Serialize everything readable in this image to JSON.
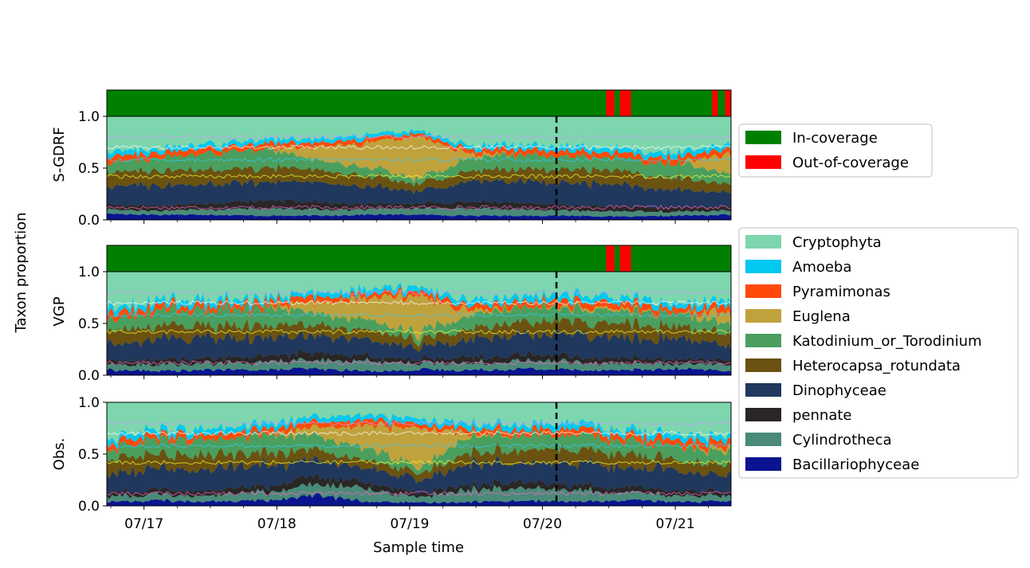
{
  "figure": {
    "ylabel": "Taxon proportion",
    "xlabel": "Sample time"
  },
  "coverage_legend": [
    {
      "label": "In-coverage",
      "color": "#008000"
    },
    {
      "label": "Out-of-coverage",
      "color": "#ff0000"
    }
  ],
  "taxa_legend": [
    {
      "label": "Cryptophyta",
      "color": "#7dd6ad"
    },
    {
      "label": "Amoeba",
      "color": "#00c8f0"
    },
    {
      "label": "Pyramimonas",
      "color": "#ff4a0a"
    },
    {
      "label": "Euglena",
      "color": "#c0a23c"
    },
    {
      "label": "Katodinium_or_Torodinium",
      "color": "#4a9f5f"
    },
    {
      "label": "Heterocapsa_rotundata",
      "color": "#6b5210"
    },
    {
      "label": "Dinophyceae",
      "color": "#20375e"
    },
    {
      "label": "pennate",
      "color": "#2a2626"
    },
    {
      "label": "Cylindrotheca",
      "color": "#4a8a78"
    },
    {
      "label": "Bacillariophyceae",
      "color": "#0a1490"
    }
  ],
  "chart_data": [
    {
      "type": "area",
      "panel": "S-GDRF",
      "ylabel": "S-GDRF",
      "y_ticks": [
        "0.0",
        "0.5",
        "1.0"
      ],
      "ylim": [
        0,
        1.25
      ],
      "x_ticks": [
        "07/17",
        "07/18",
        "07/19",
        "07/20",
        "07/21"
      ],
      "x_range_days": [
        16.72,
        21.42
      ],
      "divider_x": "07/20 02:30",
      "coverage_bar": {
        "in": "#008000",
        "out": "#ff0000",
        "out_intervals": [
          [
            "07/20 11:30",
            "07/20 13:00"
          ],
          [
            "07/20 14:00",
            "07/20 16:00"
          ],
          [
            "07/21 06:40",
            "07/21 07:40"
          ],
          [
            "07/21 09:00",
            "07/21 10:00"
          ]
        ]
      },
      "series": [
        {
          "name": "Bacillariophyceae",
          "values": [
            0.06,
            0.05,
            0.05,
            0.04,
            0.04,
            0.05,
            0.05,
            0.04,
            0.04,
            0.04,
            0.03,
            0.04,
            0.05
          ]
        },
        {
          "name": "Cylindrotheca",
          "values": [
            0.04,
            0.04,
            0.05,
            0.07,
            0.06,
            0.05,
            0.06,
            0.07,
            0.06,
            0.05,
            0.05,
            0.04,
            0.04
          ]
        },
        {
          "name": "pennate",
          "values": [
            0.05,
            0.05,
            0.06,
            0.08,
            0.07,
            0.05,
            0.05,
            0.06,
            0.07,
            0.05,
            0.05,
            0.04,
            0.04
          ]
        },
        {
          "name": "Dinophyceae",
          "values": [
            0.17,
            0.2,
            0.18,
            0.18,
            0.19,
            0.17,
            0.12,
            0.2,
            0.2,
            0.22,
            0.2,
            0.17,
            0.12
          ]
        },
        {
          "name": "Heterocapsa_rotundata",
          "values": [
            0.14,
            0.14,
            0.14,
            0.14,
            0.12,
            0.1,
            0.07,
            0.1,
            0.12,
            0.14,
            0.13,
            0.12,
            0.08
          ]
        },
        {
          "name": "Katodinium_or_Torodinium",
          "values": [
            0.08,
            0.12,
            0.16,
            0.18,
            0.1,
            0.08,
            0.05,
            0.12,
            0.14,
            0.12,
            0.12,
            0.14,
            0.1
          ]
        },
        {
          "name": "Euglena",
          "values": [
            0.0,
            0.0,
            0.0,
            0.0,
            0.12,
            0.24,
            0.4,
            0.04,
            0.0,
            0.0,
            0.0,
            0.0,
            0.2
          ]
        },
        {
          "name": "Pyramimonas",
          "values": [
            0.06,
            0.05,
            0.05,
            0.05,
            0.04,
            0.04,
            0.03,
            0.04,
            0.05,
            0.05,
            0.05,
            0.06,
            0.05
          ]
        },
        {
          "name": "Amoeba",
          "values": [
            0.05,
            0.04,
            0.04,
            0.04,
            0.04,
            0.04,
            0.03,
            0.04,
            0.04,
            0.05,
            0.04,
            0.05,
            0.04
          ]
        },
        {
          "name": "Cryptophyta",
          "values": [
            0.35,
            0.31,
            0.27,
            0.22,
            0.22,
            0.18,
            0.14,
            0.29,
            0.28,
            0.28,
            0.33,
            0.34,
            0.28
          ]
        }
      ]
    },
    {
      "type": "area",
      "panel": "VGP",
      "ylabel": "VGP",
      "y_ticks": [
        "0.0",
        "0.5",
        "1.0"
      ],
      "ylim": [
        0,
        1.25
      ],
      "x_ticks": [
        "07/17",
        "07/18",
        "07/19",
        "07/20",
        "07/21"
      ],
      "x_range_days": [
        16.72,
        21.42
      ],
      "divider_x": "07/20 02:30",
      "coverage_bar": {
        "in": "#008000",
        "out": "#ff0000",
        "out_intervals": [
          [
            "07/20 11:30",
            "07/20 13:00"
          ],
          [
            "07/20 14:00",
            "07/20 16:00"
          ]
        ]
      },
      "series": [
        {
          "name": "Bacillariophyceae",
          "values": [
            0.05,
            0.04,
            0.05,
            0.05,
            0.06,
            0.04,
            0.05,
            0.05,
            0.06,
            0.05,
            0.05,
            0.06,
            0.04
          ]
        },
        {
          "name": "Cylindrotheca",
          "values": [
            0.05,
            0.06,
            0.06,
            0.07,
            0.08,
            0.1,
            0.06,
            0.07,
            0.08,
            0.08,
            0.06,
            0.05,
            0.06
          ]
        },
        {
          "name": "pennate",
          "values": [
            0.04,
            0.05,
            0.05,
            0.06,
            0.07,
            0.05,
            0.04,
            0.06,
            0.06,
            0.05,
            0.05,
            0.05,
            0.04
          ]
        },
        {
          "name": "Dinophyceae",
          "values": [
            0.16,
            0.2,
            0.2,
            0.18,
            0.16,
            0.16,
            0.12,
            0.18,
            0.2,
            0.22,
            0.18,
            0.2,
            0.14
          ]
        },
        {
          "name": "Heterocapsa_rotundata",
          "values": [
            0.14,
            0.13,
            0.12,
            0.12,
            0.1,
            0.1,
            0.07,
            0.1,
            0.12,
            0.12,
            0.14,
            0.12,
            0.1
          ]
        },
        {
          "name": "Katodinium_or_Torodinium",
          "values": [
            0.1,
            0.14,
            0.15,
            0.18,
            0.12,
            0.1,
            0.06,
            0.14,
            0.14,
            0.12,
            0.12,
            0.12,
            0.1
          ]
        },
        {
          "name": "Euglena",
          "values": [
            0.0,
            0.0,
            0.0,
            0.0,
            0.1,
            0.2,
            0.36,
            0.04,
            0.0,
            0.02,
            0.02,
            0.0,
            0.12
          ]
        },
        {
          "name": "Pyramimonas",
          "values": [
            0.06,
            0.05,
            0.05,
            0.05,
            0.05,
            0.04,
            0.04,
            0.05,
            0.05,
            0.06,
            0.06,
            0.05,
            0.06
          ]
        },
        {
          "name": "Amoeba",
          "values": [
            0.05,
            0.05,
            0.05,
            0.04,
            0.04,
            0.05,
            0.04,
            0.05,
            0.05,
            0.06,
            0.05,
            0.05,
            0.05
          ]
        },
        {
          "name": "Cryptophyta",
          "values": [
            0.35,
            0.28,
            0.27,
            0.25,
            0.22,
            0.16,
            0.16,
            0.26,
            0.24,
            0.22,
            0.27,
            0.3,
            0.29
          ]
        }
      ]
    },
    {
      "type": "area",
      "panel": "Obs.",
      "ylabel": "Obs.",
      "y_ticks": [
        "0.0",
        "0.5",
        "1.0"
      ],
      "ylim": [
        0,
        1.0
      ],
      "x_ticks": [
        "07/17",
        "07/18",
        "07/19",
        "07/20",
        "07/21"
      ],
      "x_range_days": [
        16.72,
        21.42
      ],
      "divider_x": "07/20 02:30",
      "series": [
        {
          "name": "Bacillariophyceae",
          "values": [
            0.04,
            0.05,
            0.04,
            0.05,
            0.1,
            0.04,
            0.03,
            0.04,
            0.05,
            0.04,
            0.05,
            0.04,
            0.04
          ]
        },
        {
          "name": "Cylindrotheca",
          "values": [
            0.05,
            0.06,
            0.06,
            0.08,
            0.1,
            0.12,
            0.05,
            0.12,
            0.14,
            0.1,
            0.08,
            0.06,
            0.05
          ]
        },
        {
          "name": "pennate",
          "values": [
            0.04,
            0.05,
            0.05,
            0.06,
            0.08,
            0.06,
            0.04,
            0.05,
            0.06,
            0.05,
            0.05,
            0.05,
            0.04
          ]
        },
        {
          "name": "Dinophyceae",
          "values": [
            0.18,
            0.2,
            0.2,
            0.2,
            0.16,
            0.14,
            0.12,
            0.2,
            0.18,
            0.2,
            0.2,
            0.2,
            0.16
          ]
        },
        {
          "name": "Heterocapsa_rotundata",
          "values": [
            0.14,
            0.14,
            0.13,
            0.12,
            0.1,
            0.08,
            0.07,
            0.1,
            0.12,
            0.14,
            0.13,
            0.12,
            0.1
          ]
        },
        {
          "name": "Katodinium_or_Torodinium",
          "values": [
            0.1,
            0.13,
            0.16,
            0.18,
            0.14,
            0.12,
            0.06,
            0.16,
            0.14,
            0.14,
            0.12,
            0.14,
            0.12
          ]
        },
        {
          "name": "Euglena",
          "values": [
            0.0,
            0.0,
            0.0,
            0.0,
            0.08,
            0.22,
            0.38,
            0.02,
            0.0,
            0.0,
            0.0,
            0.0,
            0.04
          ]
        },
        {
          "name": "Pyramimonas",
          "values": [
            0.06,
            0.05,
            0.05,
            0.05,
            0.05,
            0.05,
            0.04,
            0.05,
            0.05,
            0.06,
            0.06,
            0.06,
            0.07
          ]
        },
        {
          "name": "Amoeba",
          "values": [
            0.05,
            0.05,
            0.05,
            0.05,
            0.05,
            0.05,
            0.05,
            0.05,
            0.05,
            0.06,
            0.05,
            0.05,
            0.05
          ]
        },
        {
          "name": "Cryptophyta",
          "values": [
            0.34,
            0.27,
            0.26,
            0.21,
            0.14,
            0.12,
            0.16,
            0.21,
            0.21,
            0.21,
            0.26,
            0.28,
            0.33
          ]
        }
      ]
    }
  ]
}
